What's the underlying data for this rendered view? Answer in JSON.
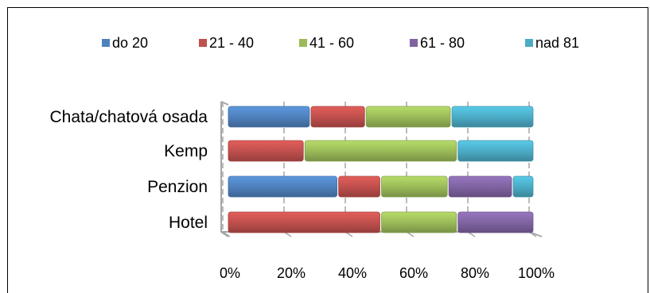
{
  "chart_data": {
    "type": "bar",
    "orientation": "horizontal",
    "stacked": "percent",
    "categories": [
      "Hotel",
      "Penzion",
      "Kemp",
      "Chata/chatová osada"
    ],
    "series": [
      {
        "name": "do 20",
        "color": "#4F81BD",
        "values": [
          0,
          36,
          0,
          27
        ]
      },
      {
        "name": "21 - 40",
        "color": "#C0504D",
        "values": [
          50,
          14,
          25,
          18
        ]
      },
      {
        "name": "41 - 60",
        "color": "#9BBB59",
        "values": [
          25,
          22,
          50,
          28
        ]
      },
      {
        "name": "61 - 80",
        "color": "#8064A2",
        "values": [
          25,
          21,
          0,
          0
        ]
      },
      {
        "name": "nad 81",
        "color": "#4BACC6",
        "values": [
          0,
          7,
          25,
          27
        ]
      }
    ],
    "xlim": [
      0,
      100
    ],
    "x_ticks": [
      "0%",
      "20%",
      "40%",
      "60%",
      "80%",
      "100%"
    ],
    "legend_position": "top",
    "grid": true,
    "style": "3d"
  }
}
